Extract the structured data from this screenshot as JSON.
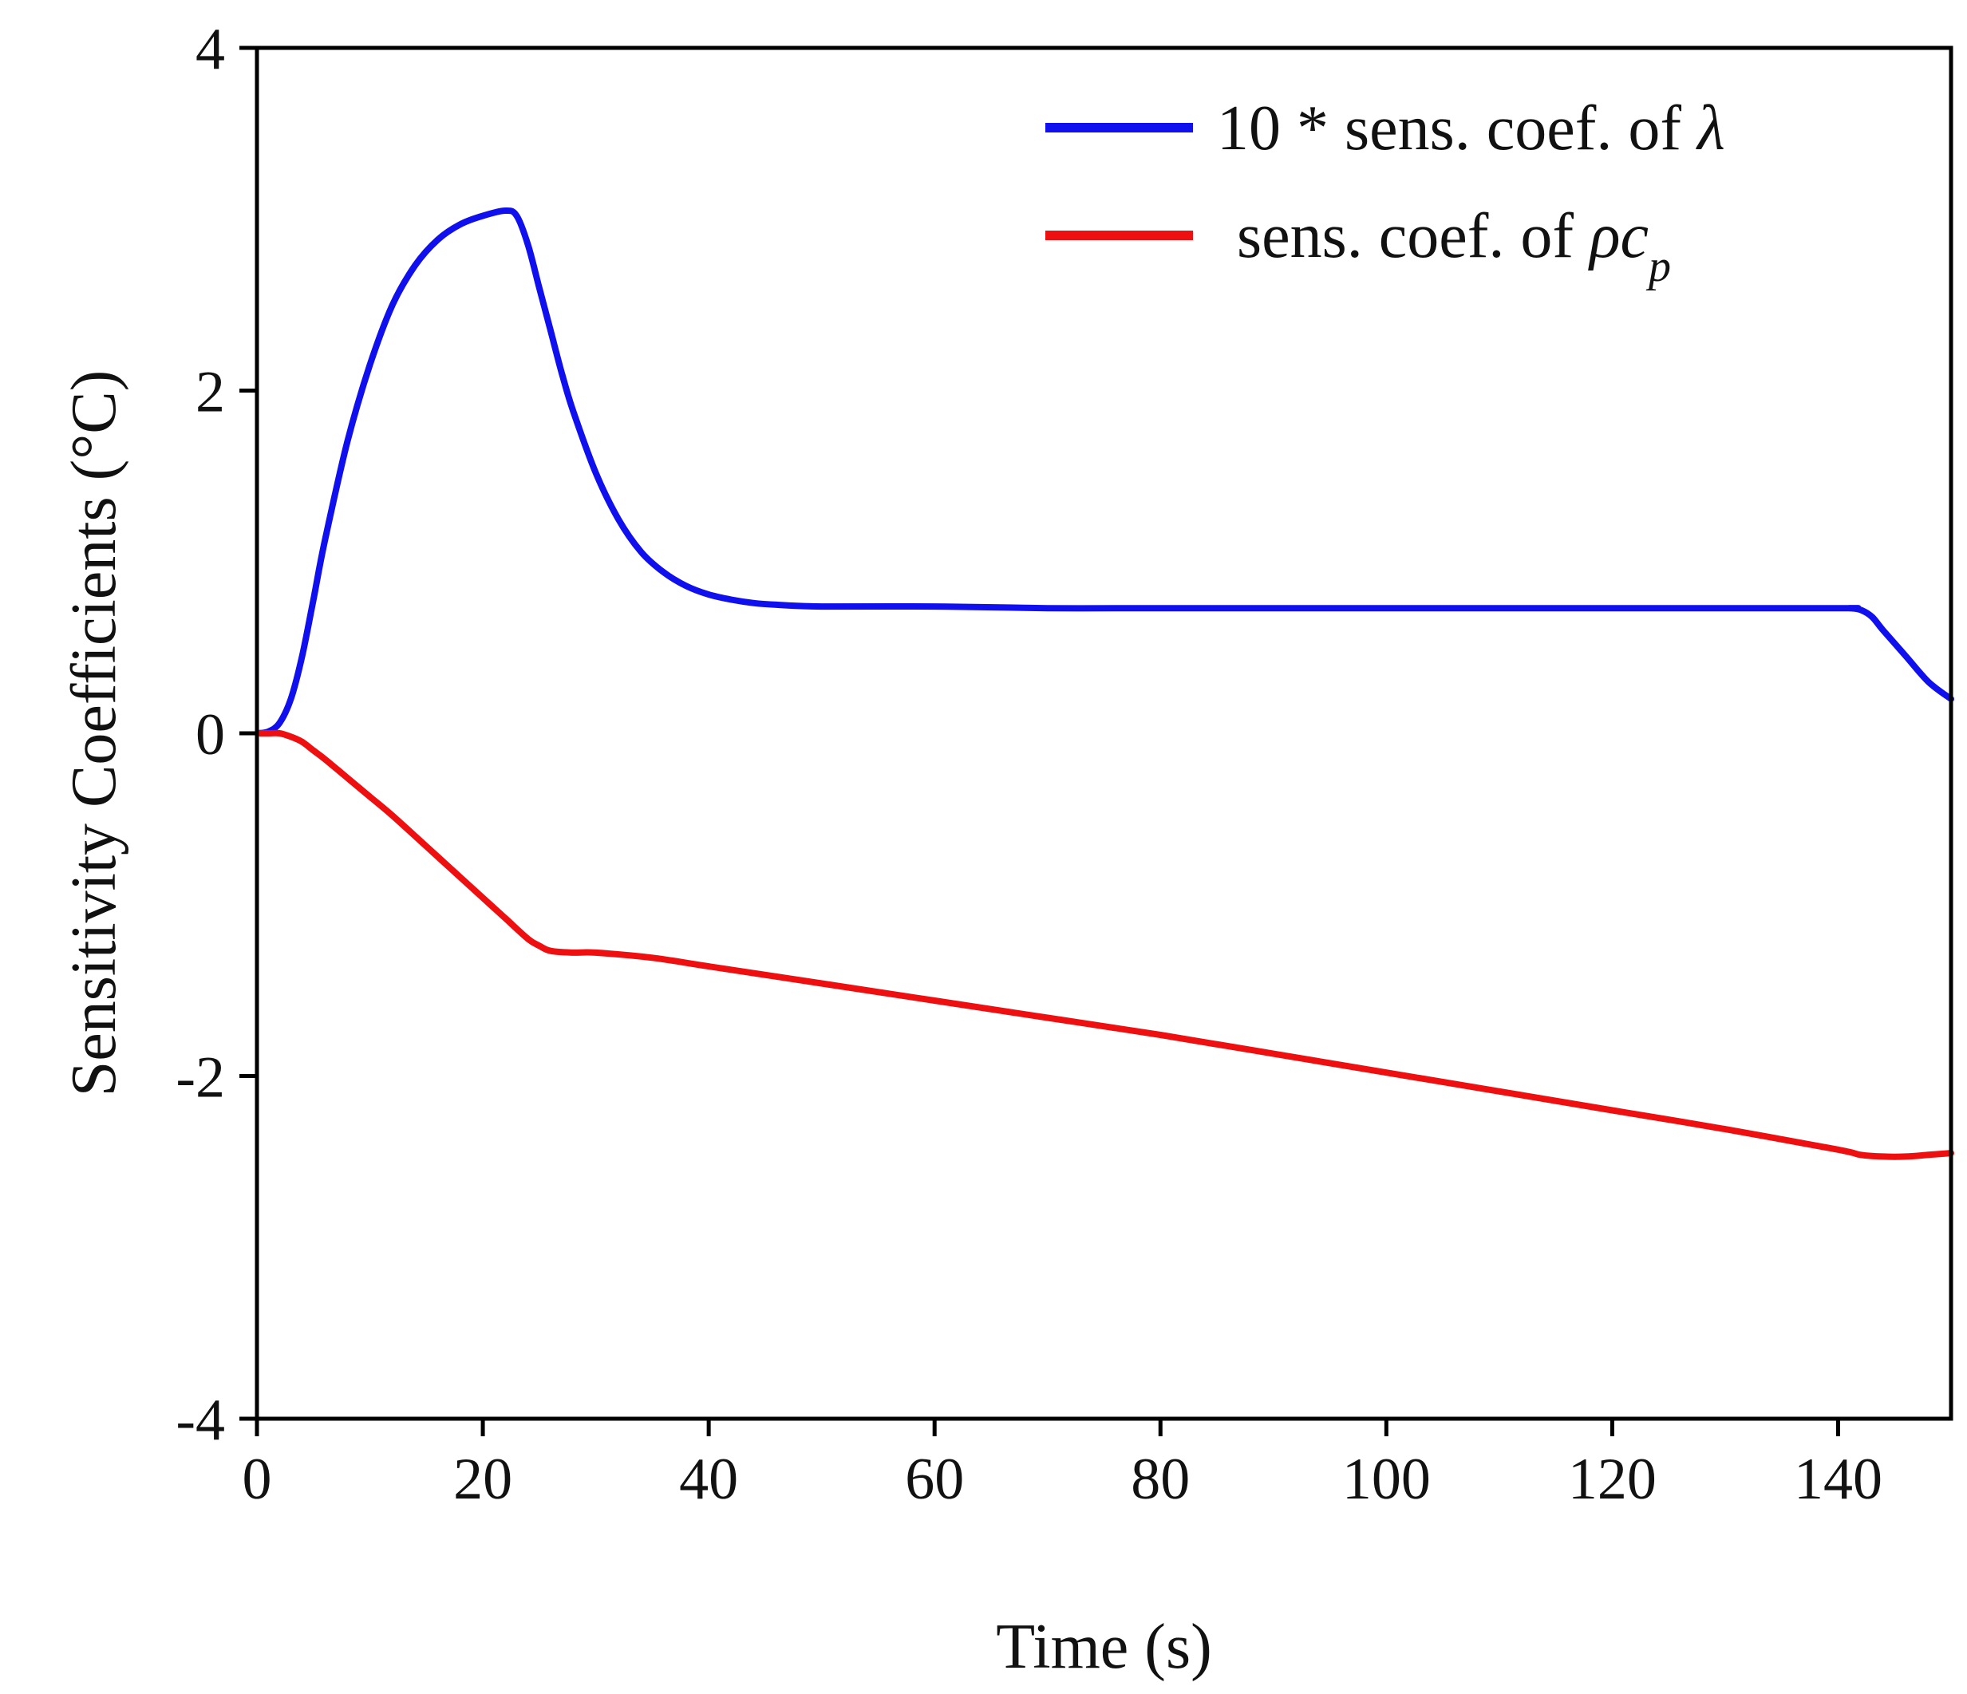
{
  "chart_data": {
    "type": "line",
    "title": "",
    "xlabel": "Time (s)",
    "ylabel": "Sensitivity Coefficients (°C)",
    "xlim": [
      0,
      150
    ],
    "ylim": [
      -4,
      4
    ],
    "xticks": [
      0,
      20,
      40,
      60,
      80,
      100,
      120,
      140
    ],
    "yticks": [
      4,
      2,
      0,
      -2,
      -4
    ],
    "xtick_labels": [
      "0",
      "20",
      "40",
      "60",
      "80",
      "100",
      "120",
      "140"
    ],
    "ytick_labels": [
      "4",
      "2",
      "0",
      "-2",
      "-4"
    ],
    "grid": false,
    "legend_position": "top-right",
    "series": [
      {
        "name": "10 * sens. coef. of λ",
        "legend_prefix": "10 * sens. coef. of ",
        "legend_symbol": "λ",
        "legend_subscript": "",
        "color": "#1010ee",
        "x": [
          0,
          1,
          2,
          3,
          4,
          5,
          6,
          8,
          10,
          12,
          14,
          16,
          18,
          20,
          22,
          23,
          24,
          25,
          26,
          27,
          28,
          30,
          32,
          34,
          36,
          38,
          40,
          42,
          44,
          46,
          50,
          60,
          70,
          80,
          100,
          120,
          140,
          141,
          142,
          143,
          144,
          146,
          148,
          150
        ],
        "y": [
          0.0,
          0.01,
          0.06,
          0.2,
          0.45,
          0.78,
          1.12,
          1.7,
          2.15,
          2.5,
          2.73,
          2.88,
          2.97,
          3.02,
          3.05,
          3.02,
          2.85,
          2.6,
          2.35,
          2.1,
          1.88,
          1.52,
          1.25,
          1.06,
          0.94,
          0.86,
          0.81,
          0.78,
          0.76,
          0.75,
          0.74,
          0.74,
          0.73,
          0.73,
          0.73,
          0.73,
          0.73,
          0.73,
          0.72,
          0.68,
          0.6,
          0.45,
          0.3,
          0.2
        ]
      },
      {
        "name": "sens. coef. of ρcp",
        "legend_prefix": "sens. coef. of ",
        "legend_symbol": "ρc",
        "legend_subscript": "p",
        "color": "#ee1010",
        "x": [
          0,
          1,
          2,
          3,
          4,
          5,
          6,
          8,
          10,
          12,
          15,
          18,
          20,
          22,
          24,
          25,
          26,
          28,
          30,
          35,
          40,
          50,
          60,
          70,
          80,
          90,
          100,
          110,
          120,
          130,
          140,
          142,
          144,
          146,
          148,
          150
        ],
        "y": [
          0.0,
          0.0,
          0.0,
          -0.02,
          -0.05,
          -0.1,
          -0.15,
          -0.26,
          -0.37,
          -0.48,
          -0.66,
          -0.84,
          -0.96,
          -1.08,
          -1.2,
          -1.24,
          -1.27,
          -1.28,
          -1.28,
          -1.31,
          -1.36,
          -1.46,
          -1.56,
          -1.66,
          -1.76,
          -1.87,
          -1.98,
          -2.09,
          -2.2,
          -2.31,
          -2.43,
          -2.46,
          -2.47,
          -2.47,
          -2.46,
          -2.45
        ]
      }
    ]
  }
}
